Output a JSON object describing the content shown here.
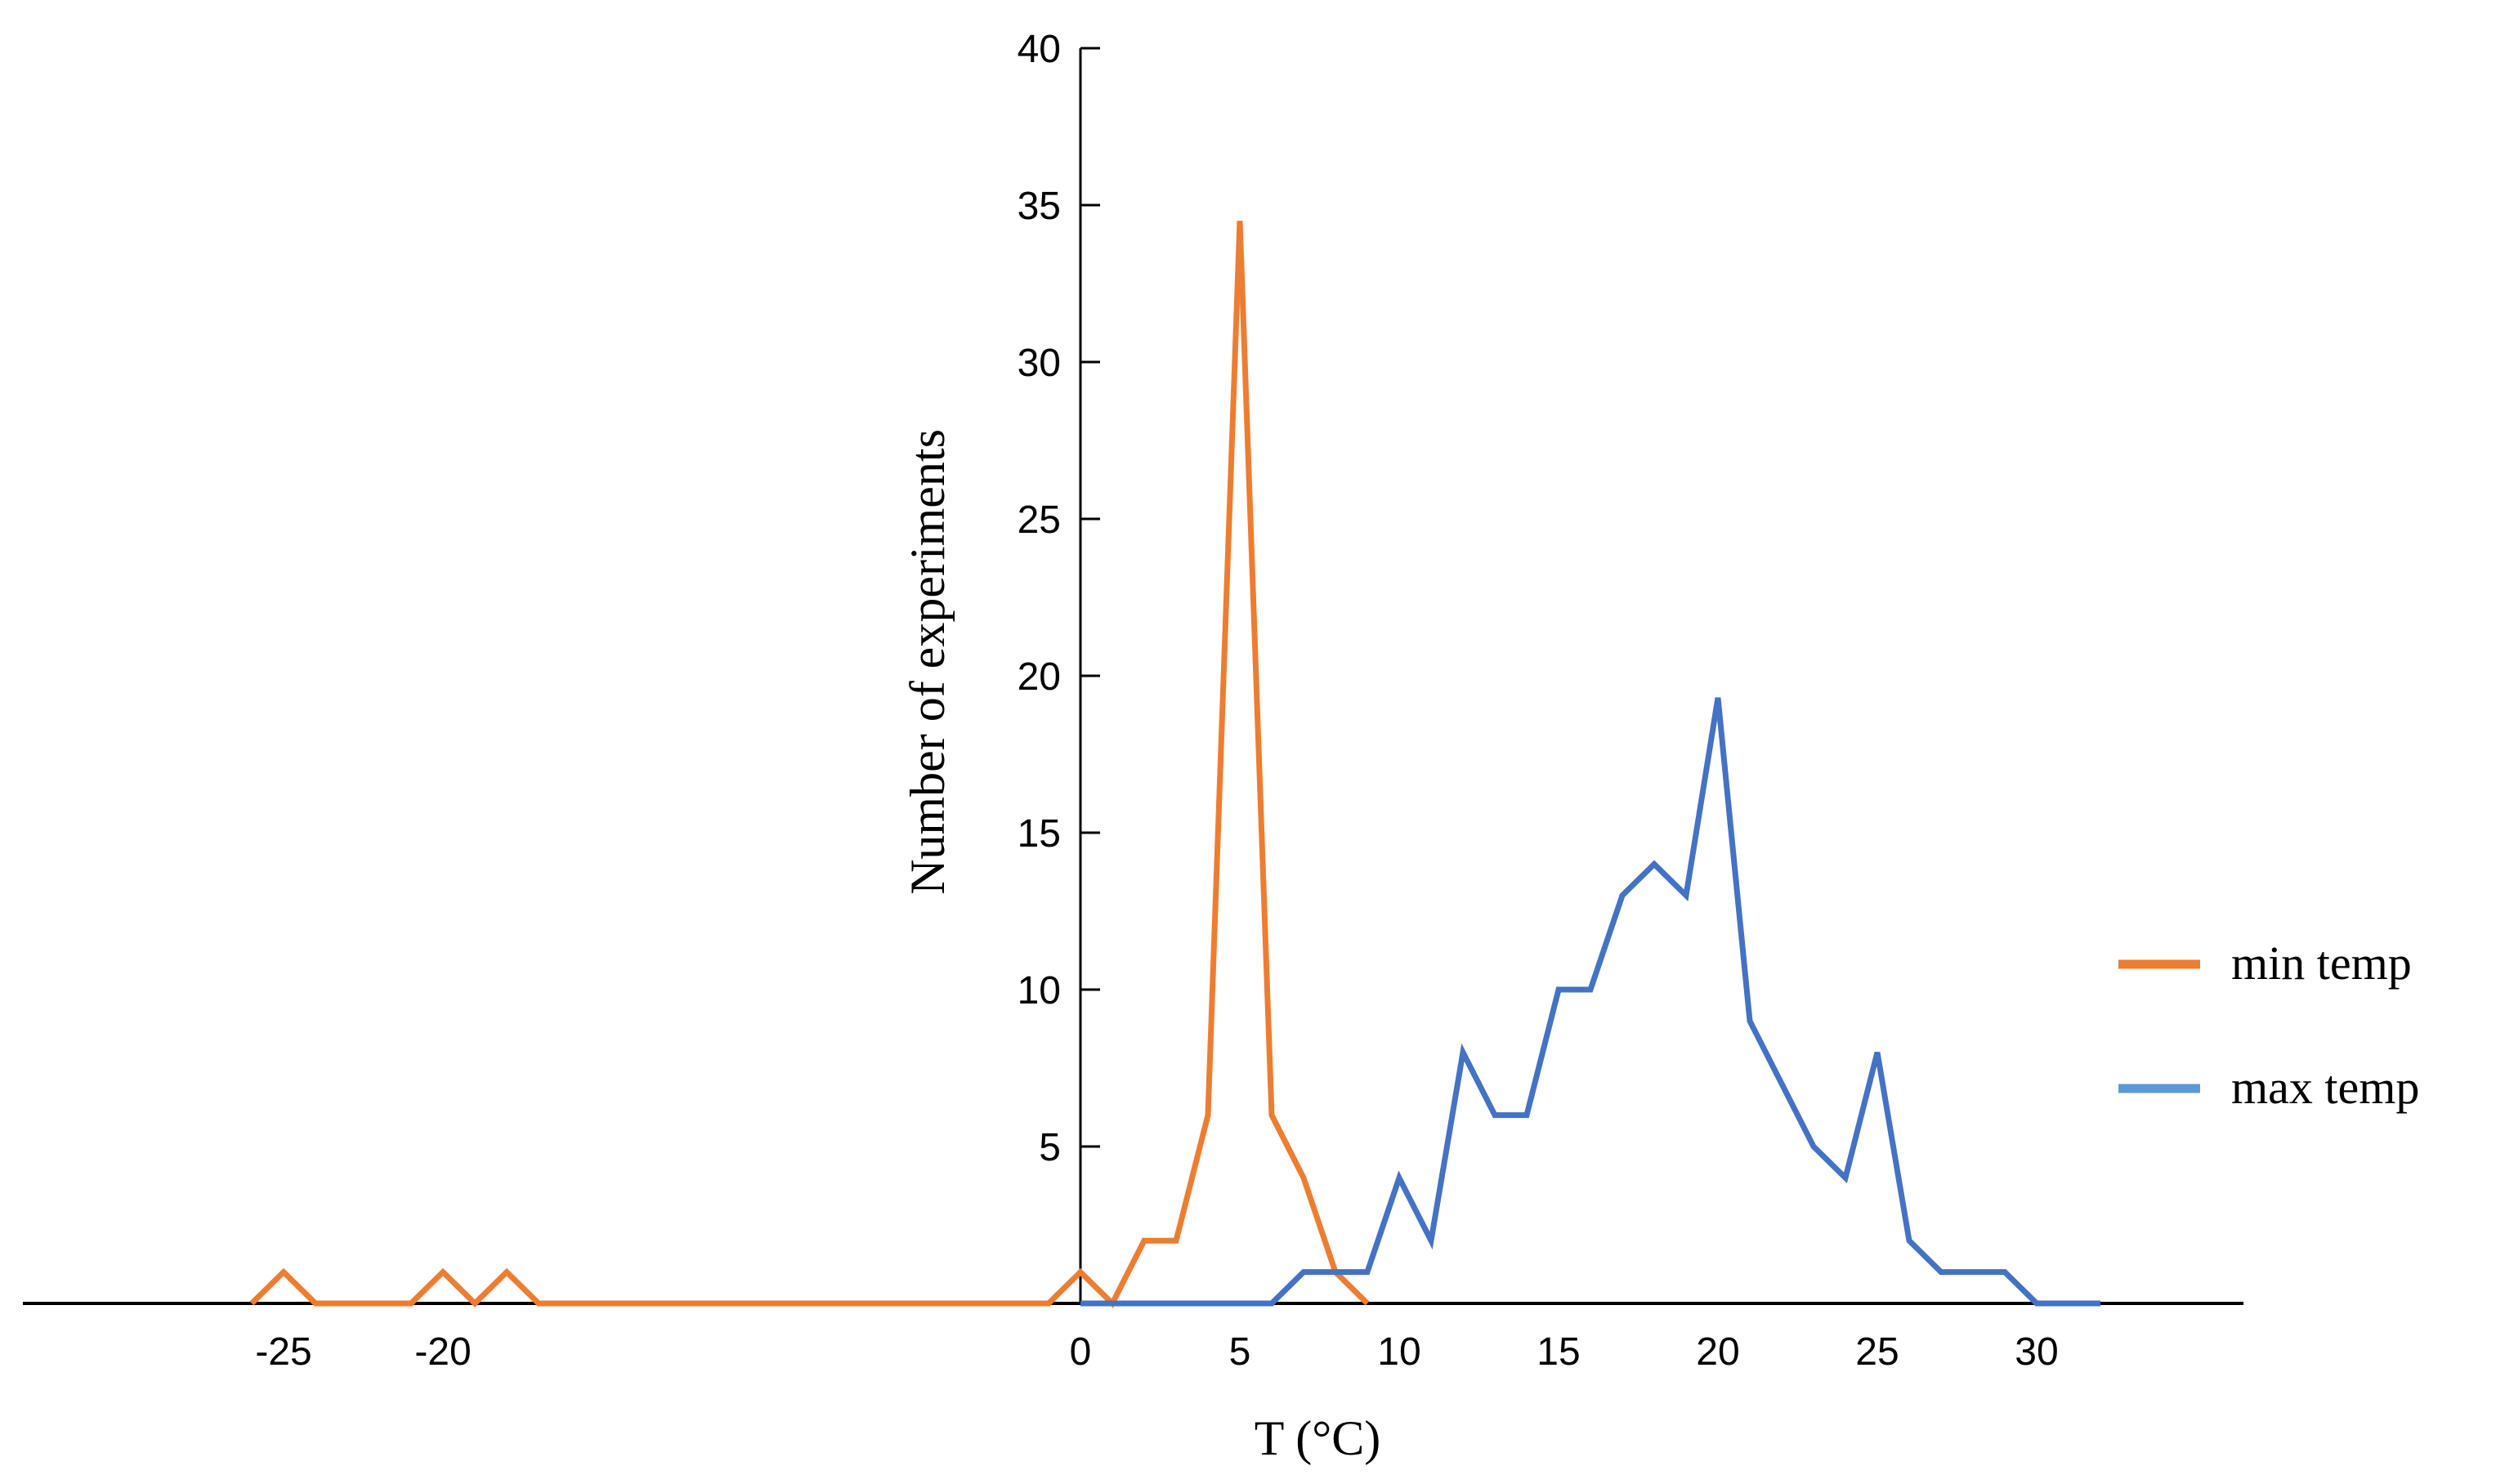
{
  "chart_data": {
    "type": "line",
    "xlabel": "T (°C)",
    "ylabel": "Number of experiments",
    "xlim": [
      -28,
      34
    ],
    "ylim": [
      0,
      40
    ],
    "xticks": [
      "-25",
      "-20",
      "0",
      "5",
      "10",
      "15",
      "20",
      "25",
      "30"
    ],
    "yticks": [
      "40",
      "35",
      "30",
      "25",
      "20",
      "15",
      "10",
      "5"
    ],
    "legend_position": "right",
    "grid": false,
    "series": [
      {
        "name": "min temp",
        "color": "#ED7D31",
        "x": [
          -26,
          -25,
          -24,
          -23,
          -22,
          -21,
          -20,
          -19,
          -18,
          -17,
          -16,
          -15,
          -14,
          -13,
          -12,
          -11,
          -10,
          -9,
          -8,
          -7,
          -6,
          -5,
          -4,
          -3,
          -2,
          -1,
          0,
          1,
          2,
          3,
          4,
          5,
          6,
          7,
          8,
          9
        ],
        "values": [
          0,
          1,
          0,
          0,
          0,
          0,
          1,
          0,
          1,
          0,
          0,
          0,
          0,
          0,
          0,
          0,
          0,
          0,
          0,
          0,
          0,
          0,
          0,
          0,
          0,
          0,
          1,
          0,
          2,
          2,
          6,
          34.5,
          6,
          4,
          1,
          0
        ]
      },
      {
        "name": "max temp",
        "color": "#4472C4",
        "x": [
          0,
          1,
          2,
          3,
          4,
          5,
          6,
          7,
          8,
          9,
          10,
          11,
          12,
          13,
          14,
          15,
          16,
          17,
          18,
          19,
          20,
          21,
          22,
          23,
          24,
          25,
          26,
          27,
          28,
          29,
          30,
          31,
          32
        ],
        "values": [
          0,
          0,
          0,
          0,
          0,
          0,
          0,
          1,
          1,
          1,
          4,
          2,
          8,
          6,
          6,
          10,
          10,
          13,
          14,
          13,
          19.3,
          9,
          7,
          5,
          4,
          8,
          2,
          1,
          1,
          1,
          0,
          0,
          0
        ]
      }
    ],
    "legend_entries": [
      {
        "label": "min temp",
        "color": "#ED7D31"
      },
      {
        "label": "max temp",
        "color": "#5B9BD5"
      }
    ]
  }
}
